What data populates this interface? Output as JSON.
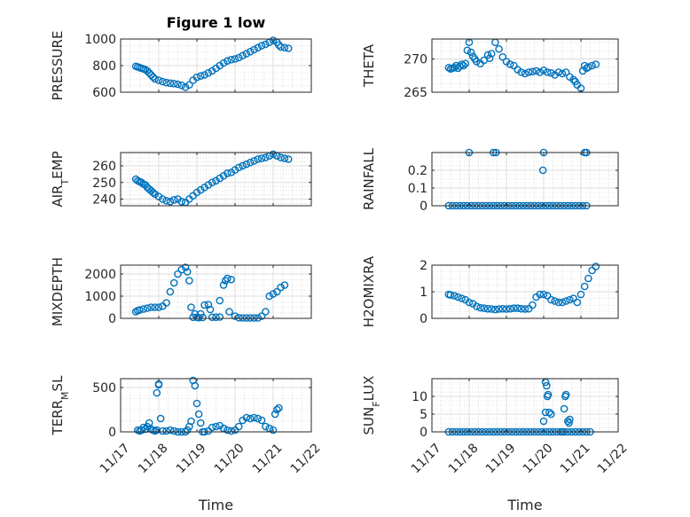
{
  "colors": {
    "marker": "#0072BD",
    "axis": "#262626",
    "grid": "#c8c8c8"
  },
  "chart_data": [
    {
      "type": "scatter",
      "title": "Figure 1 low",
      "ylabel": "PRESSURE",
      "ylim": [
        600,
        1000
      ],
      "yticks": [
        "600",
        "800",
        "1000"
      ],
      "xlim": [
        0,
        5
      ],
      "xticks": [
        "11/17",
        "11/18",
        "11/19",
        "11/20",
        "11/21",
        "11/22"
      ],
      "show_xticklabels": false,
      "xlabel": "",
      "grid": true,
      "x": [
        0.4,
        0.45,
        0.5,
        0.55,
        0.6,
        0.65,
        0.7,
        0.75,
        0.8,
        0.85,
        0.9,
        1.0,
        1.1,
        1.2,
        1.3,
        1.4,
        1.5,
        1.6,
        1.7,
        1.8,
        1.9,
        2.0,
        2.1,
        2.2,
        2.3,
        2.4,
        2.5,
        2.6,
        2.7,
        2.8,
        2.9,
        3.0,
        3.1,
        3.2,
        3.3,
        3.4,
        3.5,
        3.6,
        3.7,
        3.8,
        3.9,
        4.0,
        4.1,
        4.15,
        4.2,
        4.3,
        4.4
      ],
      "y": [
        795,
        790,
        785,
        780,
        775,
        770,
        760,
        745,
        730,
        715,
        700,
        690,
        680,
        672,
        668,
        665,
        660,
        652,
        638,
        655,
        690,
        712,
        722,
        730,
        745,
        760,
        780,
        800,
        820,
        835,
        845,
        850,
        860,
        875,
        890,
        905,
        920,
        935,
        950,
        960,
        975,
        990,
        975,
        955,
        940,
        935,
        930
      ]
    },
    {
      "type": "scatter",
      "title": "",
      "ylabel": "THETA",
      "ylim": [
        265,
        273
      ],
      "yticks": [
        "265",
        "270"
      ],
      "xlim": [
        0,
        5
      ],
      "xticks": [
        "11/17",
        "11/18",
        "11/19",
        "11/20",
        "11/21",
        "11/22"
      ],
      "show_xticklabels": false,
      "xlabel": "",
      "grid": true,
      "x": [
        0.45,
        0.5,
        0.55,
        0.6,
        0.65,
        0.7,
        0.75,
        0.8,
        0.85,
        0.9,
        0.95,
        1.0,
        1.05,
        1.1,
        1.15,
        1.2,
        1.3,
        1.4,
        1.5,
        1.55,
        1.6,
        1.7,
        1.8,
        1.9,
        2.0,
        2.1,
        2.2,
        2.3,
        2.4,
        2.5,
        2.6,
        2.7,
        2.8,
        2.9,
        3.0,
        3.1,
        3.2,
        3.3,
        3.4,
        3.5,
        3.6,
        3.7,
        3.8,
        3.85,
        3.9,
        4.0,
        4.05,
        4.1,
        4.15,
        4.2,
        4.3,
        4.4
      ],
      "y": [
        268.7,
        268.5,
        268.6,
        268.7,
        269.0,
        268.6,
        268.9,
        269.2,
        269.0,
        269.3,
        271.3,
        272.5,
        271.0,
        270.4,
        270.0,
        269.6,
        269.3,
        269.8,
        270.6,
        270.1,
        270.8,
        272.5,
        271.5,
        270.3,
        269.6,
        269.2,
        269.0,
        268.4,
        268.0,
        267.8,
        268.0,
        268.1,
        268.2,
        268.0,
        268.3,
        268.0,
        267.9,
        267.6,
        268.0,
        267.8,
        268.0,
        267.3,
        266.9,
        266.6,
        266.1,
        265.6,
        268.2,
        269.0,
        268.6,
        268.8,
        269.0,
        269.2
      ]
    },
    {
      "type": "scatter",
      "title": "",
      "ylabel": "AIR_TEMP",
      "ylim": [
        236,
        268
      ],
      "yticks": [
        "240",
        "250",
        "260"
      ],
      "xlim": [
        0,
        5
      ],
      "xticks": [
        "11/17",
        "11/18",
        "11/19",
        "11/20",
        "11/21",
        "11/22"
      ],
      "show_xticklabels": false,
      "xlabel": "",
      "grid": true,
      "x": [
        0.4,
        0.45,
        0.5,
        0.55,
        0.6,
        0.65,
        0.7,
        0.75,
        0.8,
        0.85,
        0.9,
        1.0,
        1.1,
        1.2,
        1.3,
        1.4,
        1.5,
        1.6,
        1.7,
        1.8,
        1.9,
        2.0,
        2.1,
        2.2,
        2.3,
        2.4,
        2.5,
        2.6,
        2.7,
        2.8,
        2.9,
        3.0,
        3.1,
        3.2,
        3.3,
        3.4,
        3.5,
        3.6,
        3.7,
        3.8,
        3.9,
        4.0,
        4.1,
        4.2,
        4.3,
        4.4
      ],
      "y": [
        252,
        251,
        250.5,
        250,
        249,
        248.5,
        247,
        246,
        245,
        244,
        243,
        241.5,
        240,
        239,
        238.5,
        239.5,
        240,
        238.5,
        238,
        240,
        242,
        244,
        245.5,
        247,
        248.5,
        250,
        251,
        252.5,
        254,
        255.5,
        256,
        257.5,
        259,
        260,
        261,
        262,
        263,
        264,
        264.5,
        265,
        266,
        267,
        266,
        265,
        264.5,
        264
      ]
    },
    {
      "type": "scatter",
      "title": "",
      "ylabel": "RAINFALL",
      "ylim": [
        0,
        0.3
      ],
      "yticks": [
        "0",
        "0.1",
        "0.2"
      ],
      "xlim": [
        0,
        5
      ],
      "xticks": [
        "11/17",
        "11/18",
        "11/19",
        "11/20",
        "11/21",
        "11/22"
      ],
      "show_xticklabels": false,
      "xlabel": "",
      "grid": true,
      "x": [
        0.45,
        0.55,
        0.65,
        0.75,
        0.85,
        0.95,
        1.05,
        1.15,
        1.25,
        1.35,
        1.45,
        1.55,
        1.65,
        1.75,
        1.85,
        1.95,
        2.05,
        2.15,
        2.25,
        2.35,
        2.45,
        2.55,
        2.65,
        2.75,
        2.85,
        2.95,
        3.05,
        3.15,
        3.25,
        3.35,
        3.45,
        3.55,
        3.65,
        3.75,
        3.85,
        3.95,
        4.05,
        4.15,
        1.0,
        1.65,
        1.72,
        3.0,
        4.1,
        4.15,
        2.98
      ],
      "y": [
        0,
        0,
        0,
        0,
        0,
        0,
        0,
        0,
        0,
        0,
        0,
        0,
        0,
        0,
        0,
        0,
        0,
        0,
        0,
        0,
        0,
        0,
        0,
        0,
        0,
        0,
        0,
        0,
        0,
        0,
        0,
        0,
        0,
        0,
        0,
        0,
        0,
        0,
        0.3,
        0.3,
        0.3,
        0.3,
        0.3,
        0.3,
        0.2
      ]
    },
    {
      "type": "scatter",
      "title": "",
      "ylabel": "MIXDEPTH",
      "ylim": [
        0,
        2400
      ],
      "yticks": [
        "0",
        "1000",
        "2000"
      ],
      "xlim": [
        0,
        5
      ],
      "xticks": [
        "11/17",
        "11/18",
        "11/19",
        "11/20",
        "11/21",
        "11/22"
      ],
      "show_xticklabels": false,
      "xlabel": "",
      "grid": true,
      "x": [
        0.4,
        0.45,
        0.5,
        0.6,
        0.7,
        0.8,
        0.9,
        1.0,
        1.1,
        1.2,
        1.3,
        1.4,
        1.5,
        1.6,
        1.7,
        1.75,
        1.8,
        1.85,
        1.9,
        2.0,
        2.05,
        2.1,
        2.2,
        2.3,
        2.35,
        2.4,
        2.5,
        2.6,
        2.7,
        2.75,
        2.8,
        2.9,
        3.0,
        3.1,
        3.2,
        3.3,
        3.4,
        3.5,
        3.6,
        3.7,
        3.8,
        3.9,
        4.0,
        4.1,
        4.2,
        4.3,
        1.95,
        2.15,
        2.6,
        2.85
      ],
      "y": [
        300,
        350,
        380,
        420,
        460,
        500,
        500,
        500,
        550,
        700,
        1200,
        1600,
        2000,
        2200,
        2300,
        2100,
        1700,
        500,
        50,
        50,
        30,
        200,
        600,
        620,
        400,
        50,
        50,
        800,
        1500,
        1700,
        1800,
        1750,
        100,
        30,
        20,
        20,
        20,
        20,
        20,
        100,
        300,
        1000,
        1100,
        1200,
        1400,
        1500,
        200,
        40,
        60,
        300
      ]
    },
    {
      "type": "scatter",
      "title": "",
      "ylabel": "H2OMIXRA",
      "ylim": [
        0,
        2
      ],
      "yticks": [
        "0",
        "1",
        "2"
      ],
      "xlim": [
        0,
        5
      ],
      "xticks": [
        "11/17",
        "11/18",
        "11/19",
        "11/20",
        "11/21",
        "11/22"
      ],
      "show_xticklabels": false,
      "xlabel": "",
      "grid": true,
      "x": [
        0.45,
        0.5,
        0.6,
        0.7,
        0.8,
        0.9,
        1.0,
        1.1,
        1.2,
        1.3,
        1.4,
        1.5,
        1.6,
        1.7,
        1.8,
        1.9,
        2.0,
        2.1,
        2.2,
        2.3,
        2.4,
        2.5,
        2.6,
        2.7,
        2.8,
        2.9,
        3.0,
        3.1,
        3.2,
        3.3,
        3.4,
        3.5,
        3.6,
        3.7,
        3.8,
        3.9,
        4.0,
        4.1,
        4.2,
        4.3,
        4.4
      ],
      "y": [
        0.9,
        0.88,
        0.85,
        0.8,
        0.75,
        0.7,
        0.6,
        0.55,
        0.45,
        0.4,
        0.38,
        0.36,
        0.35,
        0.33,
        0.35,
        0.36,
        0.35,
        0.36,
        0.38,
        0.38,
        0.36,
        0.35,
        0.36,
        0.5,
        0.8,
        0.9,
        0.9,
        0.85,
        0.7,
        0.65,
        0.6,
        0.6,
        0.65,
        0.7,
        0.75,
        0.6,
        0.9,
        1.2,
        1.5,
        1.8,
        1.95
      ]
    },
    {
      "type": "scatter",
      "title": "",
      "ylabel": "TERR_MSL",
      "ylim": [
        0,
        600
      ],
      "yticks": [
        "0",
        "500"
      ],
      "xlim": [
        0,
        5
      ],
      "xticks": [
        "11/17",
        "11/18",
        "11/19",
        "11/20",
        "11/21",
        "11/22"
      ],
      "show_xticklabels": true,
      "xlabel": "Time",
      "grid": true,
      "x": [
        0.45,
        0.5,
        0.55,
        0.6,
        0.65,
        0.7,
        0.75,
        0.8,
        0.85,
        0.9,
        0.95,
        1.0,
        1.1,
        1.2,
        1.3,
        1.4,
        1.5,
        1.6,
        1.7,
        1.75,
        1.8,
        1.85,
        1.9,
        1.95,
        2.0,
        2.05,
        2.1,
        2.15,
        2.2,
        2.3,
        2.4,
        2.5,
        2.6,
        2.7,
        2.8,
        2.9,
        3.0,
        3.1,
        3.2,
        3.3,
        3.4,
        3.5,
        3.6,
        3.7,
        3.8,
        3.9,
        4.0,
        4.05,
        4.1,
        4.15,
        0.95,
        1.0,
        1.05
      ],
      "y": [
        20,
        10,
        20,
        50,
        30,
        60,
        100,
        30,
        20,
        10,
        20,
        530,
        10,
        10,
        20,
        10,
        0,
        0,
        0,
        20,
        60,
        120,
        580,
        520,
        320,
        200,
        100,
        0,
        0,
        10,
        50,
        60,
        70,
        40,
        20,
        10,
        20,
        60,
        130,
        160,
        150,
        160,
        150,
        130,
        60,
        40,
        20,
        200,
        250,
        270,
        440,
        540,
        150
      ]
    },
    {
      "type": "scatter",
      "title": "",
      "ylabel": "SUN_FLUX",
      "ylim": [
        0,
        15
      ],
      "yticks": [
        "0",
        "5",
        "10"
      ],
      "xlim": [
        0,
        5
      ],
      "xticks": [
        "11/17",
        "11/18",
        "11/19",
        "11/20",
        "11/21",
        "11/22"
      ],
      "show_xticklabels": true,
      "xlabel": "Time",
      "grid": true,
      "x": [
        0.45,
        0.55,
        0.65,
        0.75,
        0.85,
        0.95,
        1.05,
        1.15,
        1.25,
        1.35,
        1.45,
        1.55,
        1.65,
        1.75,
        1.85,
        1.95,
        2.05,
        2.15,
        2.25,
        2.35,
        2.45,
        2.55,
        2.65,
        2.75,
        2.85,
        2.95,
        3.05,
        3.15,
        3.25,
        3.35,
        3.45,
        3.55,
        3.65,
        3.75,
        3.85,
        3.95,
        4.05,
        4.15,
        4.25,
        3.0,
        3.05,
        3.08,
        3.1,
        3.12,
        3.15,
        3.2,
        3.05,
        3.5,
        3.55,
        3.58,
        3.6,
        3.65,
        3.68,
        3.7
      ],
      "y": [
        0,
        0,
        0,
        0,
        0,
        0,
        0,
        0,
        0,
        0,
        0,
        0,
        0,
        0,
        0,
        0,
        0,
        0,
        0,
        0,
        0,
        0,
        0,
        0,
        0,
        0,
        0,
        0,
        0,
        0,
        0,
        0,
        0,
        0,
        0,
        0,
        0,
        0,
        0,
        3,
        14,
        13,
        10,
        10.5,
        5.5,
        5,
        5.5,
        0,
        6.5,
        10,
        10.5,
        3,
        2.5,
        3.5
      ]
    }
  ]
}
